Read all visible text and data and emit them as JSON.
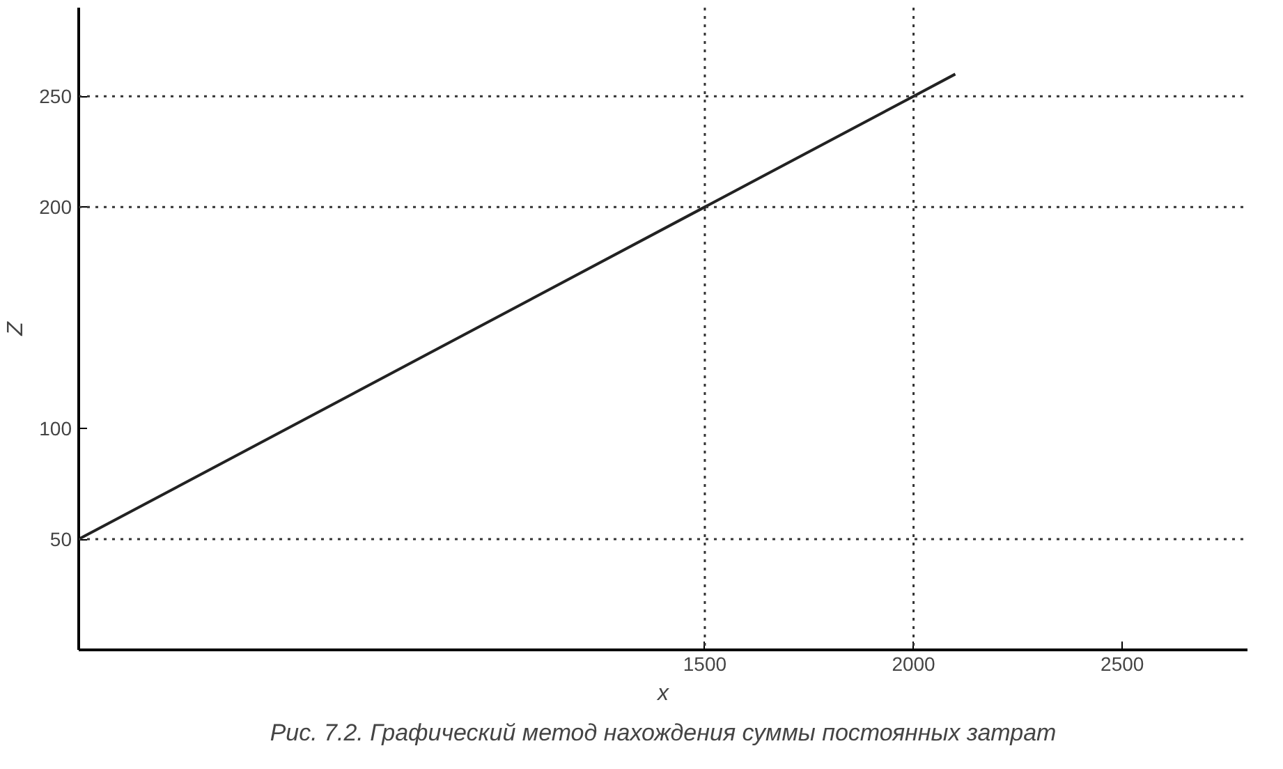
{
  "chart_data": {
    "type": "line",
    "xlabel": "x",
    "ylabel": "Z",
    "x": [
      0,
      1500,
      2000,
      2100
    ],
    "series": [
      {
        "color": "#222222",
        "values": [
          50,
          200,
          250,
          260
        ]
      }
    ],
    "xlim": [
      0,
      2800
    ],
    "ylim": [
      0,
      290
    ],
    "xticks": [
      1500,
      2000,
      2500
    ],
    "yticks": [
      50,
      100,
      200,
      250
    ],
    "ref_lines": [
      {
        "axis": "y",
        "value": 50,
        "line_style": "dotted"
      },
      {
        "axis": "y",
        "value": 200,
        "line_style": "dotted"
      },
      {
        "axis": "y",
        "value": 250,
        "line_style": "dotted"
      },
      {
        "axis": "x",
        "value": 1500,
        "line_style": "dotted"
      },
      {
        "axis": "x",
        "value": 2000,
        "line_style": "dotted"
      }
    ],
    "grid": false,
    "marker": "none",
    "line_style": "solid",
    "annotations": [
      "Рис. 7.2. Графический метод нахождения суммы постоянных затрат"
    ]
  }
}
